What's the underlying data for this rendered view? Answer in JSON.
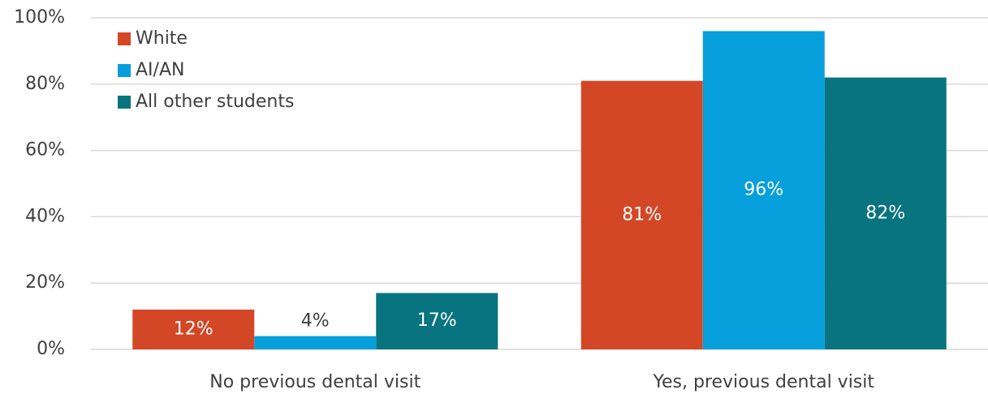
{
  "chart_data": {
    "type": "bar",
    "categories": [
      "No previous dental visit",
      "Yes, previous dental visit"
    ],
    "series": [
      {
        "name": "White",
        "color": "#d34727",
        "values": [
          12,
          81
        ],
        "value_labels": [
          "12%",
          "81%"
        ]
      },
      {
        "name": "AI/AN",
        "color": "#069fdb",
        "values": [
          4,
          96
        ],
        "value_labels": [
          "4%",
          "96%"
        ]
      },
      {
        "name": "All other students",
        "color": "#087480",
        "values": [
          17,
          82
        ],
        "value_labels": [
          "17%",
          "82%"
        ]
      }
    ],
    "ylim": [
      0,
      100
    ],
    "yticks": [
      {
        "value": 0,
        "label": "0%"
      },
      {
        "value": 20,
        "label": "20%"
      },
      {
        "value": 40,
        "label": "40%"
      },
      {
        "value": 60,
        "label": "60%"
      },
      {
        "value": 80,
        "label": "80%"
      },
      {
        "value": 100,
        "label": "100%"
      }
    ],
    "grid": true,
    "legend": "upper left"
  }
}
